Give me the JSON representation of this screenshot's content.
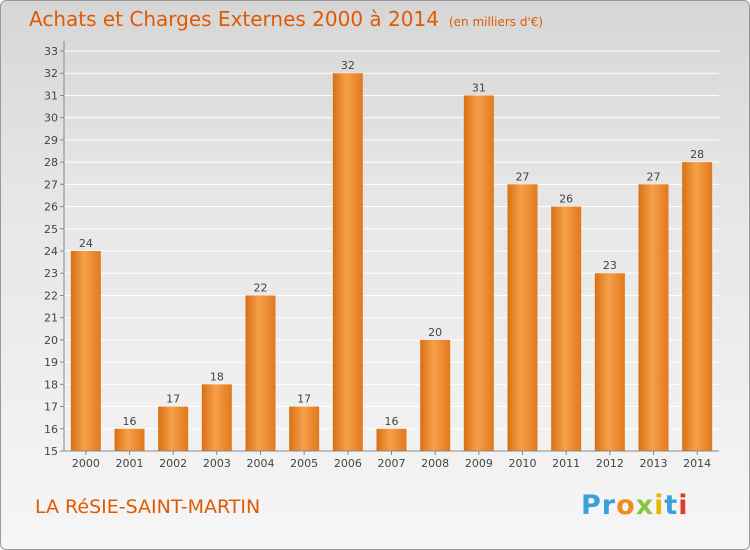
{
  "chart_data": {
    "type": "bar",
    "title": "Achats et Charges Externes 2000 à 2014",
    "subtitle": "(en milliers d'€)",
    "categories": [
      "2000",
      "2001",
      "2002",
      "2003",
      "2004",
      "2005",
      "2006",
      "2007",
      "2008",
      "2009",
      "2010",
      "2011",
      "2012",
      "2013",
      "2014"
    ],
    "values": [
      24,
      16,
      17,
      18,
      22,
      17,
      32,
      16,
      20,
      31,
      27,
      26,
      23,
      27,
      28
    ],
    "ylim": [
      15,
      33
    ],
    "yticks": [
      15,
      16,
      17,
      18,
      19,
      20,
      21,
      22,
      23,
      24,
      25,
      26,
      27,
      28,
      29,
      30,
      31,
      32,
      33
    ],
    "grid": true,
    "bar_color": "#f08a2a"
  },
  "commune": "LA RéSIE-SAINT-MARTIN",
  "logo": {
    "letters": [
      "P",
      "r",
      "o",
      "x",
      "i",
      "t",
      "i"
    ],
    "colors": [
      "#3aa0d8",
      "#3aa0d8",
      "#f28a1c",
      "#8cc63e",
      "#e8b800",
      "#3aa0d8",
      "#e03a2a"
    ]
  }
}
